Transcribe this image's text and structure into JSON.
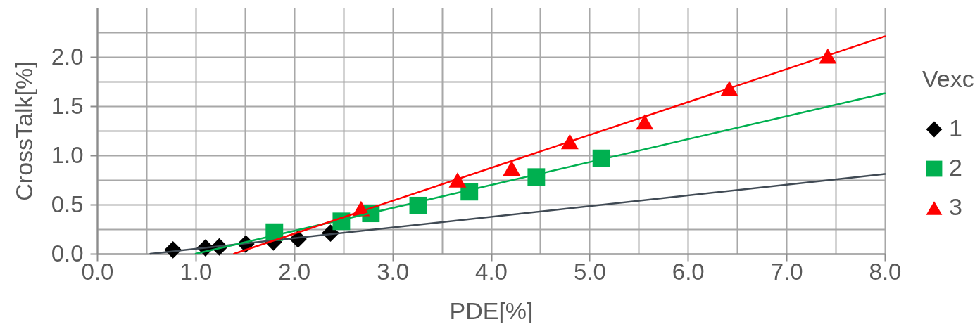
{
  "chart_data": {
    "type": "scatter",
    "xlabel": "PDE[%]",
    "ylabel": "CrossTalk[%]",
    "legend_title": "Vexc",
    "legend": "right",
    "grid": true,
    "xlim": [
      0,
      8
    ],
    "xticks": [
      {
        "value": 0,
        "label": "0.0"
      },
      {
        "value": 0.5,
        "label": null
      },
      {
        "value": 1,
        "label": "1.0"
      },
      {
        "value": 1.5,
        "label": null
      },
      {
        "value": 2,
        "label": "2.0"
      },
      {
        "value": 2.5,
        "label": null
      },
      {
        "value": 3,
        "label": "3.0"
      },
      {
        "value": 3.5,
        "label": null
      },
      {
        "value": 4,
        "label": "4.0"
      },
      {
        "value": 4.5,
        "label": null
      },
      {
        "value": 5,
        "label": "5.0"
      },
      {
        "value": 5.5,
        "label": null
      },
      {
        "value": 6,
        "label": "6.0"
      },
      {
        "value": 6.5,
        "label": null
      },
      {
        "value": 7,
        "label": "7.0"
      },
      {
        "value": 7.5,
        "label": null
      },
      {
        "value": 8,
        "label": "8.0"
      }
    ],
    "ylim": [
      0,
      2.5
    ],
    "yticks": [
      {
        "value": 0,
        "label": "0.0"
      },
      {
        "value": 0.25,
        "label": null
      },
      {
        "value": 0.5,
        "label": "0.5"
      },
      {
        "value": 0.75,
        "label": null
      },
      {
        "value": 1,
        "label": "1.0"
      },
      {
        "value": 1.25,
        "label": null
      },
      {
        "value": 1.5,
        "label": "1.5"
      },
      {
        "value": 1.75,
        "label": null
      },
      {
        "value": 2,
        "label": "2.0"
      },
      {
        "value": 2.25,
        "label": null
      }
    ],
    "series": [
      {
        "name": "1",
        "type": "scatter",
        "marker": "diamond",
        "color": "#000000",
        "x": [
          0.77,
          1.1,
          1.24,
          1.51,
          1.79,
          2.04,
          2.37
        ],
        "values": [
          0.04,
          0.06,
          0.07,
          0.1,
          0.12,
          0.15,
          0.21
        ]
      },
      {
        "type": "line",
        "color": "#404a54",
        "x": [
          0.54,
          8.0
        ],
        "values": [
          0,
          0.81
        ]
      },
      {
        "name": "2",
        "type": "scatter",
        "marker": "square",
        "color": "#00b050",
        "x": [
          1.8,
          2.48,
          2.78,
          3.26,
          3.78,
          4.46,
          5.12
        ],
        "values": [
          0.22,
          0.33,
          0.41,
          0.49,
          0.63,
          0.78,
          0.97
        ]
      },
      {
        "type": "line",
        "color": "#00b050",
        "x": [
          1.0,
          8.0
        ],
        "values": [
          0,
          1.63
        ]
      },
      {
        "name": "3",
        "type": "scatter",
        "marker": "triangle",
        "color": "#ff0000",
        "x": [
          2.68,
          3.66,
          4.21,
          4.8,
          5.56,
          6.42,
          7.42
        ],
        "values": [
          0.46,
          0.75,
          0.87,
          1.14,
          1.34,
          1.68,
          2.01
        ]
      },
      {
        "type": "line",
        "color": "#ff0000",
        "x": [
          1.39,
          8.0
        ],
        "values": [
          0,
          2.21
        ]
      }
    ]
  }
}
